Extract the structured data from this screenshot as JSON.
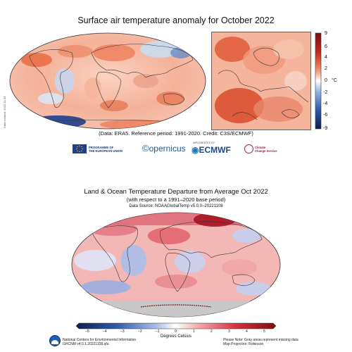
{
  "top": {
    "title": "Surface air temperature anomaly for October 2022",
    "credit": "(Data: ERA5.  Reference period: 1991-2020.  Credit: C3S/ECMWF)",
    "side_text": "Data created: 2022-11-03",
    "unit": "°C",
    "colorbar_ticks": [
      "9",
      "6",
      "4",
      "2",
      "0",
      "-2",
      "-4",
      "-6",
      "-9"
    ],
    "logos": {
      "eu_line1": "PROGRAMME OF",
      "eu_line2": "THE EUROPEAN UNION",
      "copernicus": "opernicus",
      "ecmwf_small": "IMPLEMENTED BY",
      "ecmwf": "ECMWF",
      "c3s_line1": "Climate",
      "c3s_line2": "Change Service"
    }
  },
  "bottom": {
    "title": "Land & Ocean Temperature Departure from Average Oct 2022",
    "subtitle": "(with respect to a 1991–2020 base period)",
    "source": "Data Source: NOAAGlobalTemp v5.0.0–20221108",
    "colorbar_ticks": [
      "−5",
      "−4",
      "−3",
      "−2",
      "−1",
      "0",
      "1",
      "2",
      "3",
      "4",
      "5"
    ],
    "colorbar_label": "Degrees Celsius",
    "footer_left_1": "National Centers for Environmental Information",
    "footer_left_2": "GHCNM v4.0.1.20221108.qfu",
    "footer_right_1": "Please Note: Gray areas represent missing data",
    "footer_right_2": "Map Projection: Robinson"
  },
  "colors": {
    "warm_strong": "#c62a1e",
    "warm": "#f08a6a",
    "cool": "#6a8cc8",
    "cool_strong": "#1f3f8c",
    "missing": "#c8c8c8"
  }
}
